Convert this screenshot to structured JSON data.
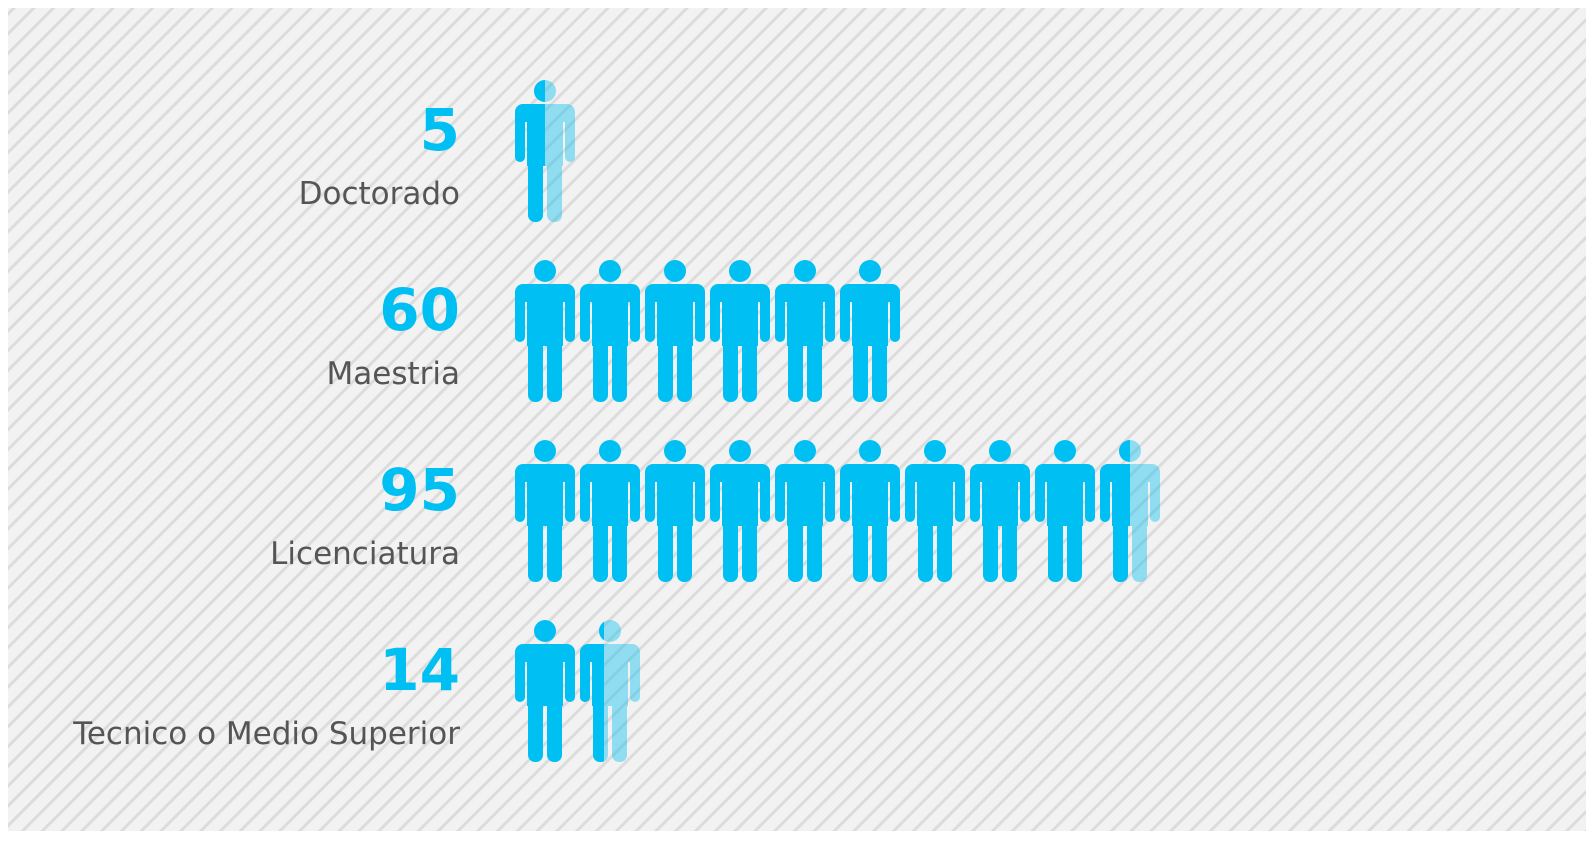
{
  "chart_data": {
    "type": "pictograph",
    "categories": [
      "Doctorado",
      "Maestria",
      "Licenciatura",
      "Tecnico o Medio Superior"
    ],
    "values": [
      5,
      60,
      95,
      14
    ],
    "color": "#00bff3"
  }
}
